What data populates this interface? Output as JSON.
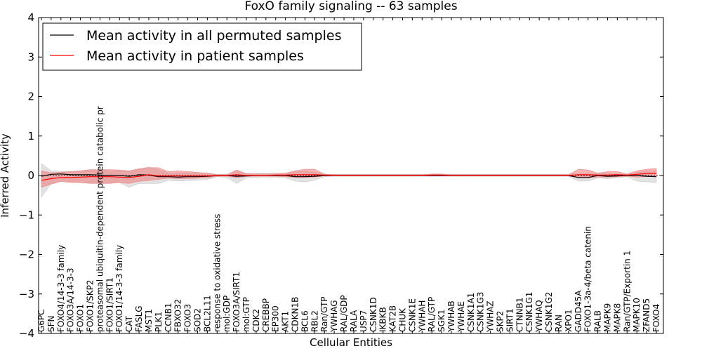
{
  "chart_data": {
    "type": "line",
    "title": "FoxO family signaling -- 63 samples",
    "xlabel": "Cellular Entities",
    "ylabel": "Inferred Activity",
    "ylim": [
      -4,
      4
    ],
    "yticks": [
      "−4",
      "−3",
      "−2",
      "−1",
      "0",
      "1",
      "2",
      "3",
      "4"
    ],
    "legend_position": "top-left",
    "categories": [
      "G6PC",
      "SFN",
      "FOXO4/14-3-3 family",
      "FOXO3A/14-3-3",
      "FOXO1",
      "FOXO1/SKP2",
      "proteasomal ubiquitin-dependent protein catabolic pr",
      "FOXO1/SIRT1",
      "FOXO1/14-3-3 family",
      "CAT",
      "FASLG",
      "MST1",
      "PLK1",
      "CCNB1",
      "FBXO32",
      "FOXO3",
      "SOD2",
      "BCL2L11",
      "response to oxidative stress",
      "mol:GDP",
      "FOXO3A/SIRT1",
      "mol:GTP",
      "CDK2",
      "CREBBP",
      "EP300",
      "AKT1",
      "CDKN1B",
      "BCL6",
      "RBL2",
      "Ran/GTP",
      "YWHAG",
      "RAL/GDP",
      "RALA",
      "USP7",
      "CSNK1D",
      "IKBKB",
      "KAT2B",
      "CHUK",
      "CSNK1E",
      "YWHAH",
      "RAL/GTP",
      "SGK1",
      "YWHAB",
      "YWHAE",
      "CSNK1A1",
      "CSNK1G3",
      "YWHAZ",
      "SKP2",
      "SIRT1",
      "CTNNB1",
      "CSNK1G1",
      "YWHAQ",
      "CSNK1G2",
      "RAN",
      "XPO1",
      "GADD45A",
      "FOXO1-3a-4/beta catenin",
      "RALB",
      "MAPK9",
      "MAPK8",
      "Ran/GTP/Exportin 1",
      "MAPK10",
      "ZFAND5",
      "FOXO4"
    ],
    "series": [
      {
        "name": "Mean activity in all permuted samples",
        "color": "#000000",
        "band_color": "#bfbfbf",
        "values": [
          -0.02,
          0.03,
          0.04,
          0.02,
          0.02,
          0.02,
          0.01,
          0.0,
          0.0,
          -0.02,
          0.02,
          0.01,
          -0.03,
          -0.03,
          -0.04,
          -0.03,
          -0.03,
          -0.02,
          0.0,
          0.0,
          -0.02,
          -0.01,
          0.0,
          0.0,
          0.0,
          0.0,
          -0.03,
          -0.03,
          -0.02,
          0.0,
          0.0,
          0.0,
          0.0,
          0.0,
          0.0,
          0.0,
          0.0,
          0.0,
          0.0,
          0.0,
          0.0,
          0.0,
          0.0,
          0.0,
          0.0,
          0.0,
          0.0,
          0.0,
          0.0,
          0.0,
          0.0,
          0.0,
          0.0,
          0.0,
          0.0,
          -0.05,
          -0.05,
          0.0,
          -0.02,
          -0.01,
          0.0,
          0.0,
          -0.02,
          -0.03
        ],
        "lower": [
          -0.55,
          -0.2,
          -0.15,
          -0.15,
          -0.18,
          -0.2,
          -0.2,
          -0.2,
          -0.18,
          -0.3,
          -0.2,
          -0.2,
          -0.2,
          -0.12,
          -0.14,
          -0.13,
          -0.12,
          -0.1,
          -0.03,
          -0.05,
          -0.2,
          -0.06,
          -0.04,
          -0.04,
          -0.04,
          -0.06,
          -0.14,
          -0.16,
          -0.12,
          -0.03,
          -0.02,
          -0.02,
          -0.02,
          -0.02,
          -0.02,
          -0.02,
          -0.02,
          -0.02,
          -0.02,
          -0.02,
          -0.02,
          -0.02,
          -0.02,
          -0.02,
          -0.02,
          -0.02,
          -0.02,
          -0.02,
          -0.02,
          -0.02,
          -0.02,
          -0.02,
          -0.02,
          -0.02,
          -0.02,
          -0.14,
          -0.14,
          -0.06,
          -0.08,
          -0.06,
          -0.03,
          -0.14,
          -0.16,
          -0.18
        ],
        "upper": [
          0.3,
          0.12,
          0.1,
          0.1,
          0.12,
          0.15,
          0.14,
          0.12,
          0.12,
          0.1,
          0.16,
          0.22,
          0.14,
          0.06,
          0.06,
          0.07,
          0.07,
          0.06,
          0.03,
          0.03,
          0.12,
          0.04,
          0.05,
          0.05,
          0.05,
          0.05,
          0.1,
          0.1,
          0.08,
          0.03,
          0.03,
          0.03,
          0.03,
          0.03,
          0.03,
          0.03,
          0.03,
          0.03,
          0.03,
          0.03,
          0.03,
          0.03,
          0.03,
          0.03,
          0.03,
          0.03,
          0.03,
          0.03,
          0.03,
          0.03,
          0.03,
          0.03,
          0.03,
          0.03,
          0.03,
          0.05,
          0.05,
          0.05,
          0.05,
          0.04,
          0.03,
          0.08,
          0.1,
          0.12
        ]
      },
      {
        "name": "Mean activity in patient samples",
        "color": "#ff0000",
        "band_color": "#f08080",
        "values": [
          -0.12,
          -0.08,
          -0.05,
          -0.05,
          -0.04,
          -0.03,
          -0.03,
          -0.03,
          -0.04,
          -0.05,
          -0.02,
          0.02,
          -0.01,
          -0.01,
          -0.01,
          -0.01,
          -0.01,
          -0.01,
          0.0,
          0.0,
          0.02,
          0.0,
          0.0,
          0.0,
          0.01,
          0.01,
          0.02,
          0.02,
          0.02,
          0.01,
          0.0,
          0.0,
          0.0,
          0.0,
          0.0,
          0.0,
          0.0,
          0.0,
          0.0,
          0.0,
          0.01,
          0.01,
          0.0,
          0.0,
          0.0,
          0.0,
          0.0,
          0.0,
          0.0,
          0.0,
          0.0,
          0.0,
          0.0,
          0.0,
          0.0,
          0.02,
          0.02,
          0.01,
          0.01,
          0.02,
          0.01,
          0.03,
          0.05,
          0.05
        ],
        "lower": [
          -0.3,
          -0.22,
          -0.15,
          -0.18,
          -0.18,
          -0.2,
          -0.2,
          -0.2,
          -0.18,
          -0.2,
          -0.15,
          -0.13,
          -0.1,
          -0.07,
          -0.08,
          -0.08,
          -0.07,
          -0.06,
          -0.02,
          -0.02,
          -0.06,
          -0.02,
          -0.02,
          -0.02,
          -0.02,
          -0.03,
          -0.05,
          -0.05,
          -0.04,
          -0.01,
          -0.01,
          -0.01,
          -0.01,
          -0.01,
          -0.01,
          -0.01,
          -0.01,
          -0.01,
          -0.01,
          -0.01,
          -0.01,
          -0.01,
          -0.01,
          -0.01,
          -0.01,
          -0.01,
          -0.01,
          -0.01,
          -0.01,
          -0.01,
          -0.01,
          -0.01,
          -0.01,
          -0.01,
          -0.01,
          -0.06,
          -0.06,
          -0.04,
          -0.04,
          -0.03,
          -0.02,
          -0.04,
          -0.03,
          -0.03
        ],
        "upper": [
          0.12,
          0.07,
          0.08,
          0.1,
          0.12,
          0.15,
          0.15,
          0.15,
          0.14,
          0.12,
          0.17,
          0.2,
          0.2,
          0.1,
          0.12,
          0.1,
          0.08,
          0.06,
          0.02,
          0.02,
          0.14,
          0.05,
          0.04,
          0.04,
          0.05,
          0.06,
          0.12,
          0.16,
          0.16,
          0.04,
          0.02,
          0.02,
          0.02,
          0.02,
          0.02,
          0.02,
          0.02,
          0.02,
          0.02,
          0.02,
          0.04,
          0.04,
          0.02,
          0.02,
          0.02,
          0.02,
          0.02,
          0.02,
          0.02,
          0.02,
          0.02,
          0.02,
          0.02,
          0.02,
          0.02,
          0.16,
          0.14,
          0.06,
          0.1,
          0.1,
          0.04,
          0.12,
          0.16,
          0.18
        ]
      }
    ]
  }
}
